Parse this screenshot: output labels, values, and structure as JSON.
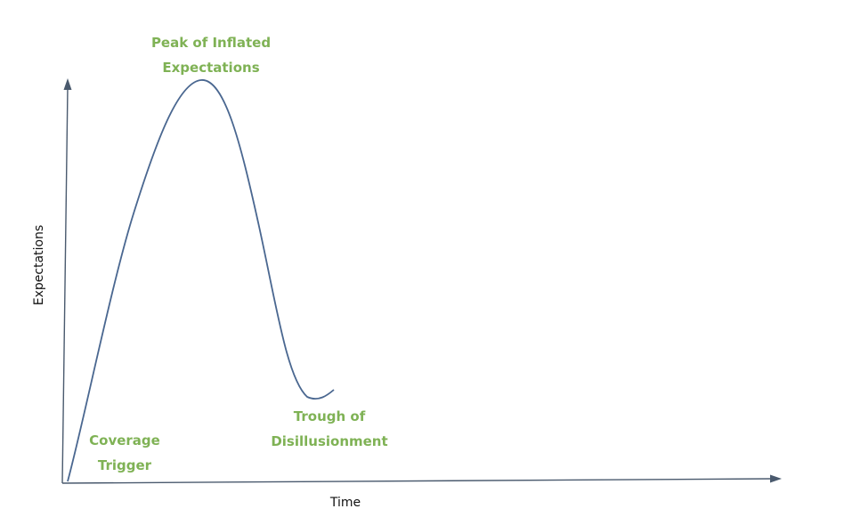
{
  "diagram": {
    "axes": {
      "x_label": "Time",
      "y_label": "Expectations"
    },
    "phases": [
      {
        "lines": [
          "Peak of Inflated",
          "Expectations"
        ]
      },
      {
        "lines": [
          "Coverage",
          "Trigger"
        ]
      },
      {
        "lines": [
          "Trough of",
          "Disillusionment"
        ]
      }
    ],
    "colors": {
      "label_green": "#7fb255",
      "curve_blue": "#4a6790",
      "axis_gray": "#4a5a6e"
    }
  }
}
